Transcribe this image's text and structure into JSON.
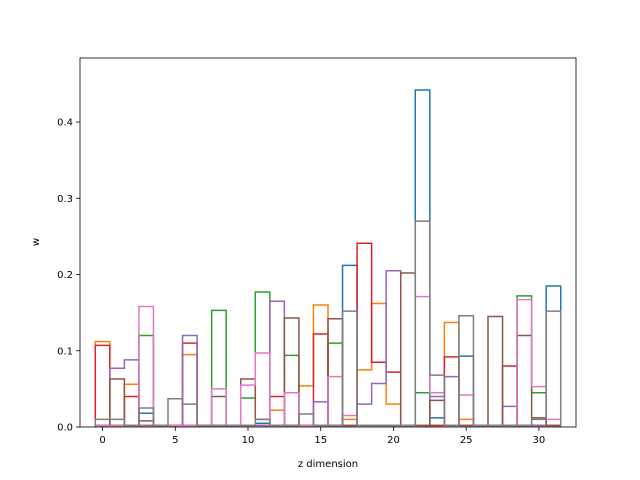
{
  "chart_data": {
    "type": "step",
    "xlabel": "z dimension",
    "ylabel": "w",
    "xlim": [
      -1.55,
      32.55
    ],
    "ylim": [
      0,
      0.484
    ],
    "xticks": [
      0,
      5,
      10,
      15,
      20,
      25,
      30
    ],
    "xtick_labels": [
      "0",
      "5",
      "10",
      "15",
      "20",
      "25",
      "30"
    ],
    "yticks": [
      0.0,
      0.1,
      0.2,
      0.3,
      0.4
    ],
    "ytick_labels": [
      "0.0",
      "0.1",
      "0.2",
      "0.3",
      "0.4"
    ],
    "grid": false,
    "x": [
      0,
      1,
      2,
      3,
      4,
      5,
      6,
      7,
      8,
      9,
      10,
      11,
      12,
      13,
      14,
      15,
      16,
      17,
      18,
      19,
      20,
      21,
      22,
      23,
      24,
      25,
      26,
      27,
      28,
      29,
      30,
      31
    ],
    "series": [
      {
        "color": "#1f77b4",
        "values": [
          0.002,
          0.002,
          0.002,
          0.018,
          0.002,
          0.002,
          0.002,
          0.002,
          0.002,
          0.002,
          0.002,
          0.005,
          0.002,
          0.002,
          0.002,
          0.002,
          0.002,
          0.212,
          0.002,
          0.002,
          0.002,
          0.002,
          0.442,
          0.012,
          0.002,
          0.093,
          0.002,
          0.002,
          0.002,
          0.002,
          0.002,
          0.185
        ]
      },
      {
        "color": "#ff7f0e",
        "values": [
          0.112,
          0.002,
          0.056,
          0.002,
          0.002,
          0.002,
          0.095,
          0.002,
          0.002,
          0.002,
          0.002,
          0.002,
          0.022,
          0.002,
          0.054,
          0.16,
          0.002,
          0.01,
          0.075,
          0.162,
          0.03,
          0.002,
          0.002,
          0.002,
          0.137,
          0.01,
          0.002,
          0.002,
          0.002,
          0.002,
          0.002,
          0.002
        ]
      },
      {
        "color": "#2ca02c",
        "values": [
          0.002,
          0.002,
          0.002,
          0.12,
          0.002,
          0.002,
          0.002,
          0.002,
          0.153,
          0.002,
          0.038,
          0.177,
          0.002,
          0.094,
          0.002,
          0.002,
          0.11,
          0.002,
          0.002,
          0.002,
          0.002,
          0.002,
          0.045,
          0.002,
          0.002,
          0.002,
          0.002,
          0.002,
          0.002,
          0.172,
          0.045,
          0.002
        ]
      },
      {
        "color": "#d62728",
        "values": [
          0.107,
          0.002,
          0.04,
          0.002,
          0.002,
          0.002,
          0.11,
          0.002,
          0.002,
          0.002,
          0.002,
          0.002,
          0.04,
          0.002,
          0.002,
          0.122,
          0.002,
          0.002,
          0.241,
          0.085,
          0.072,
          0.002,
          0.002,
          0.002,
          0.092,
          0.002,
          0.002,
          0.002,
          0.08,
          0.002,
          0.002,
          0.002
        ]
      },
      {
        "color": "#9467bd",
        "values": [
          0.002,
          0.077,
          0.088,
          0.002,
          0.002,
          0.002,
          0.12,
          0.002,
          0.002,
          0.002,
          0.002,
          0.002,
          0.165,
          0.002,
          0.002,
          0.033,
          0.002,
          0.002,
          0.03,
          0.057,
          0.205,
          0.002,
          0.002,
          0.04,
          0.066,
          0.002,
          0.002,
          0.002,
          0.027,
          0.002,
          0.002,
          0.002
        ]
      },
      {
        "color": "#8c564b",
        "values": [
          0.002,
          0.063,
          0.002,
          0.008,
          0.002,
          0.002,
          0.002,
          0.002,
          0.04,
          0.002,
          0.063,
          0.01,
          0.002,
          0.143,
          0.002,
          0.002,
          0.142,
          0.002,
          0.002,
          0.002,
          0.002,
          0.202,
          0.002,
          0.035,
          0.002,
          0.002,
          0.002,
          0.145,
          0.002,
          0.12,
          0.012,
          0.002
        ]
      },
      {
        "color": "#e377c2",
        "values": [
          0.002,
          0.002,
          0.002,
          0.158,
          0.002,
          0.002,
          0.002,
          0.002,
          0.05,
          0.002,
          0.055,
          0.097,
          0.002,
          0.045,
          0.002,
          0.002,
          0.066,
          0.015,
          0.002,
          0.002,
          0.002,
          0.002,
          0.171,
          0.045,
          0.002,
          0.042,
          0.002,
          0.002,
          0.002,
          0.167,
          0.053,
          0.01
        ]
      },
      {
        "color": "#7f7f7f",
        "values": [
          0.01,
          0.01,
          0.002,
          0.025,
          0.002,
          0.037,
          0.03,
          0.002,
          0.002,
          0.002,
          0.002,
          0.01,
          0.002,
          0.002,
          0.017,
          0.002,
          0.002,
          0.152,
          0.002,
          0.002,
          0.002,
          0.002,
          0.27,
          0.068,
          0.002,
          0.146,
          0.002,
          0.002,
          0.002,
          0.002,
          0.01,
          0.152
        ]
      }
    ]
  }
}
